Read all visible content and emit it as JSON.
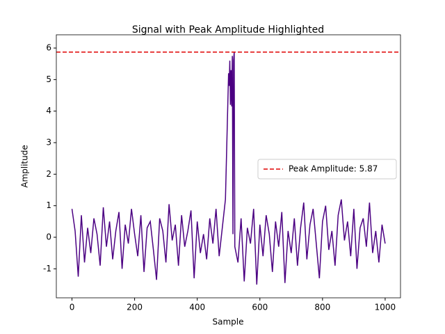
{
  "chart_data": {
    "type": "line",
    "title": "Signal with Peak Amplitude Highlighted",
    "xlabel": "Sample",
    "ylabel": "Amplitude",
    "x": [
      0,
      10,
      20,
      30,
      40,
      50,
      60,
      70,
      80,
      90,
      100,
      110,
      120,
      130,
      140,
      150,
      160,
      170,
      180,
      190,
      200,
      210,
      220,
      230,
      240,
      250,
      260,
      270,
      280,
      290,
      300,
      310,
      320,
      330,
      340,
      350,
      360,
      370,
      380,
      390,
      400,
      410,
      420,
      430,
      440,
      450,
      460,
      470,
      480,
      490,
      500,
      502,
      504,
      506,
      508,
      510,
      512,
      514,
      516,
      518,
      520,
      530,
      540,
      550,
      560,
      570,
      580,
      590,
      600,
      610,
      620,
      630,
      640,
      650,
      660,
      670,
      680,
      690,
      700,
      710,
      720,
      730,
      740,
      750,
      760,
      770,
      780,
      790,
      800,
      810,
      820,
      830,
      840,
      850,
      860,
      870,
      880,
      890,
      900,
      910,
      920,
      930,
      940,
      950,
      960,
      970,
      980,
      990,
      1000
    ],
    "series": [
      {
        "color": "#4b0082",
        "values": [
          0.9,
          0.2,
          -1.25,
          0.7,
          -0.8,
          0.3,
          -0.5,
          0.6,
          0.1,
          -0.9,
          0.95,
          -0.3,
          0.5,
          -0.7,
          0.2,
          0.8,
          -1.0,
          0.4,
          -0.2,
          0.9,
          0.1,
          -0.6,
          0.7,
          -1.1,
          0.3,
          0.5,
          -0.4,
          -1.35,
          0.6,
          0.2,
          -0.8,
          1.05,
          -0.1,
          0.4,
          -0.9,
          0.7,
          -0.3,
          0.2,
          0.85,
          -1.3,
          0.5,
          -0.5,
          0.1,
          -0.7,
          0.6,
          -0.2,
          0.9,
          -0.6,
          0.3,
          1.2,
          5.2,
          4.8,
          5.6,
          4.2,
          5.3,
          4.15,
          5.75,
          0.1,
          5.6,
          5.87,
          -0.3,
          -0.8,
          0.6,
          -1.4,
          0.3,
          -0.2,
          0.9,
          -1.5,
          0.4,
          -0.6,
          0.7,
          0.1,
          -1.1,
          0.5,
          -0.3,
          0.8,
          -1.45,
          0.2,
          -0.5,
          0.6,
          -0.9,
          0.3,
          1.1,
          -0.7,
          0.4,
          0.9,
          -0.2,
          -1.3,
          0.5,
          1.0,
          -0.4,
          0.2,
          -0.9,
          0.7,
          1.2,
          -0.1,
          0.5,
          -0.6,
          0.9,
          -1.0,
          0.3,
          0.6,
          -0.3,
          1.1,
          -0.5,
          0.2,
          -0.8,
          0.4,
          -0.2
        ]
      }
    ],
    "peak_line": {
      "value": 5.87,
      "label": "Peak Amplitude: 5.87",
      "color": "#e00000"
    },
    "legend": "center right",
    "xlim": [
      -50,
      1049
    ],
    "xticks": [
      0,
      200,
      400,
      600,
      800,
      1000
    ],
    "ylim": [
      -1.92,
      6.42
    ],
    "yticks": [
      -1,
      0,
      1,
      2,
      3,
      4,
      5,
      6
    ]
  }
}
